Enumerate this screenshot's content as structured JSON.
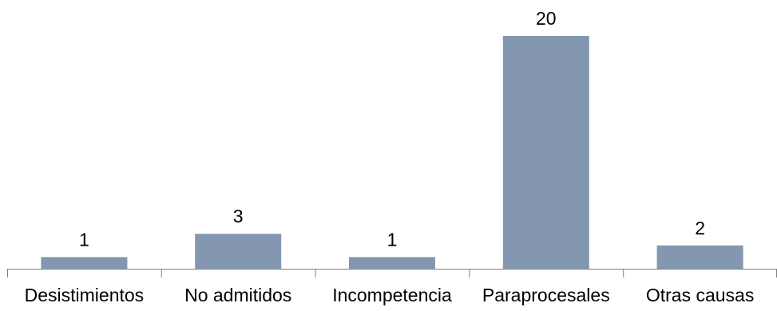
{
  "chart_data": {
    "type": "bar",
    "categories": [
      "Desistimientos",
      "No admitidos",
      "Incompetencia",
      "Paraprocesales",
      "Otras causas"
    ],
    "values": [
      1,
      3,
      1,
      20,
      2
    ],
    "data_labels": [
      "1",
      "3",
      "1",
      "20",
      "2"
    ],
    "title": "",
    "xlabel": "",
    "ylabel": "",
    "ylim": [
      0,
      20
    ],
    "grid": false,
    "legend": "none",
    "bar_color": "#8497B0",
    "axis_color": "#808080"
  }
}
